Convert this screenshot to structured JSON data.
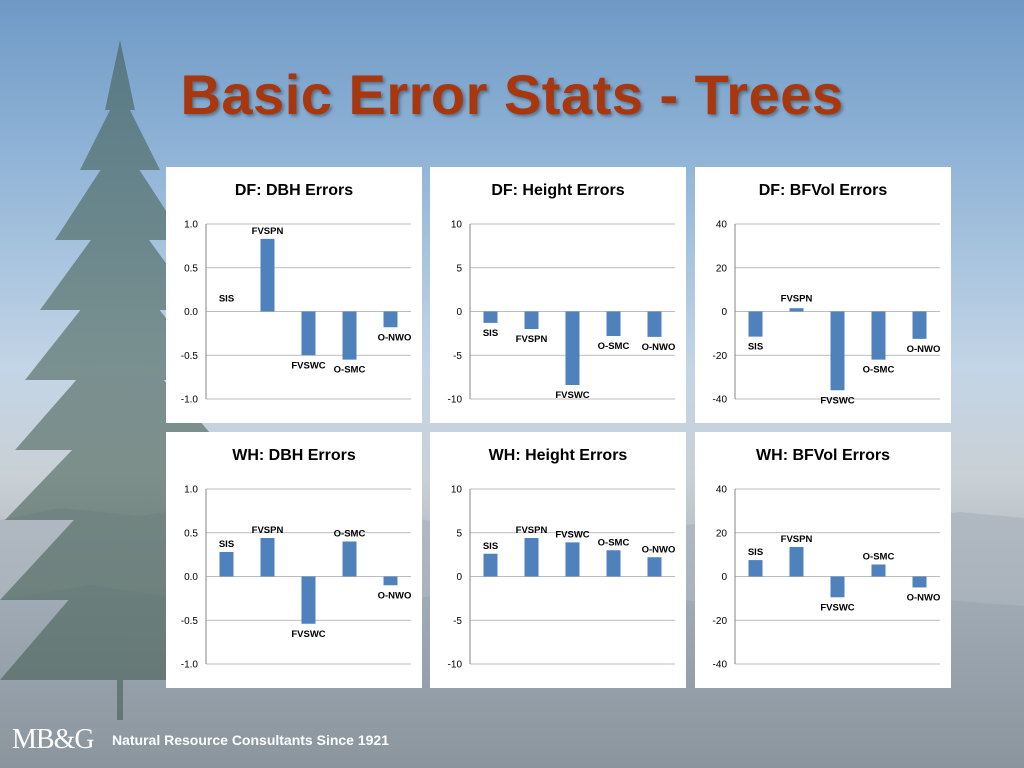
{
  "slide": {
    "title": "Basic Error Stats - Trees",
    "footer_logo": "MB&G",
    "footer_tagline": "Natural Resource Consultants Since 1921",
    "bar_color": "#4f81bd",
    "title_color": "#a8370e"
  },
  "chart_data": [
    {
      "type": "bar",
      "title": "DF: DBH Errors",
      "categories": [
        "SIS",
        "FVSPN",
        "FVSWC",
        "O-SMC",
        "O-NWO"
      ],
      "values": [
        0.0,
        0.83,
        -0.5,
        -0.55,
        -0.18
      ],
      "ylim": [
        -1.0,
        1.0
      ],
      "yticks": [
        "1.0",
        "0.5",
        "0.0",
        "-0.5",
        "-1.0"
      ],
      "xlabel": "",
      "ylabel": "",
      "grid": true
    },
    {
      "type": "bar",
      "title": "DF: Height Errors",
      "categories": [
        "SIS",
        "FVSPN",
        "FVSWC",
        "O-SMC",
        "O-NWO"
      ],
      "values": [
        -1.3,
        -2.0,
        -8.4,
        -2.8,
        -2.9
      ],
      "ylim": [
        -10,
        10
      ],
      "yticks": [
        "10",
        "5",
        "0",
        "-5",
        "-10"
      ],
      "xlabel": "",
      "ylabel": "",
      "grid": true
    },
    {
      "type": "bar",
      "title": "DF: BFVol Errors",
      "categories": [
        "SIS",
        "FVSPN",
        "FVSWC",
        "O-SMC",
        "O-NWO"
      ],
      "values": [
        -11.5,
        1.5,
        -36,
        -22,
        -12.5
      ],
      "ylim": [
        -40,
        40
      ],
      "yticks": [
        "40",
        "20",
        "0",
        "-20",
        "-40"
      ],
      "xlabel": "",
      "ylabel": "",
      "grid": true
    },
    {
      "type": "bar",
      "title": "WH: DBH Errors",
      "categories": [
        "SIS",
        "FVSPN",
        "FVSWC",
        "O-SMC",
        "O-NWO"
      ],
      "values": [
        0.28,
        0.44,
        -0.54,
        0.4,
        -0.1
      ],
      "ylim": [
        -1.0,
        1.0
      ],
      "yticks": [
        "1.0",
        "0.5",
        "0.0",
        "-0.5",
        "-1.0"
      ],
      "xlabel": "",
      "ylabel": "",
      "grid": true
    },
    {
      "type": "bar",
      "title": "WH: Height Errors",
      "categories": [
        "SIS",
        "FVSPN",
        "FVSWC",
        "O-SMC",
        "O-NWO"
      ],
      "values": [
        2.6,
        4.4,
        3.9,
        3.0,
        2.2
      ],
      "ylim": [
        -10,
        10
      ],
      "yticks": [
        "10",
        "5",
        "0",
        "-5",
        "-10"
      ],
      "xlabel": "",
      "ylabel": "",
      "grid": true
    },
    {
      "type": "bar",
      "title": "WH: BFVol Errors",
      "categories": [
        "SIS",
        "FVSPN",
        "FVSWC",
        "O-SMC",
        "O-NWO"
      ],
      "values": [
        7.5,
        13.5,
        -9.5,
        5.5,
        -5
      ],
      "ylim": [
        -40,
        40
      ],
      "yticks": [
        "40",
        "20",
        "0",
        "-20",
        "-40"
      ],
      "xlabel": "",
      "ylabel": "",
      "grid": true
    }
  ]
}
